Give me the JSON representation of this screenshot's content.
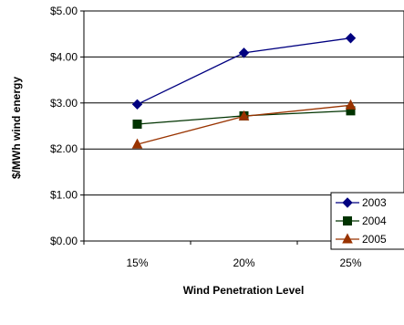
{
  "chart_data": {
    "type": "line",
    "title": "",
    "xlabel": "Wind Penetration Level",
    "ylabel": "$/MWh wind energy",
    "categories": [
      "15%",
      "20%",
      "25%"
    ],
    "ylim": [
      0,
      5
    ],
    "yticks": [
      "$0.00",
      "$1.00",
      "$2.00",
      "$3.00",
      "$4.00",
      "$5.00"
    ],
    "grid": "horizontal",
    "legend_position": "bottom-right",
    "series": [
      {
        "name": "2003",
        "values": [
          2.97,
          4.09,
          4.41
        ],
        "color": "#000080",
        "marker": "diamond"
      },
      {
        "name": "2004",
        "values": [
          2.54,
          2.72,
          2.83
        ],
        "color": "#003300",
        "marker": "square"
      },
      {
        "name": "2005",
        "values": [
          2.1,
          2.71,
          2.95
        ],
        "color": "#993300",
        "marker": "triangle"
      }
    ]
  }
}
